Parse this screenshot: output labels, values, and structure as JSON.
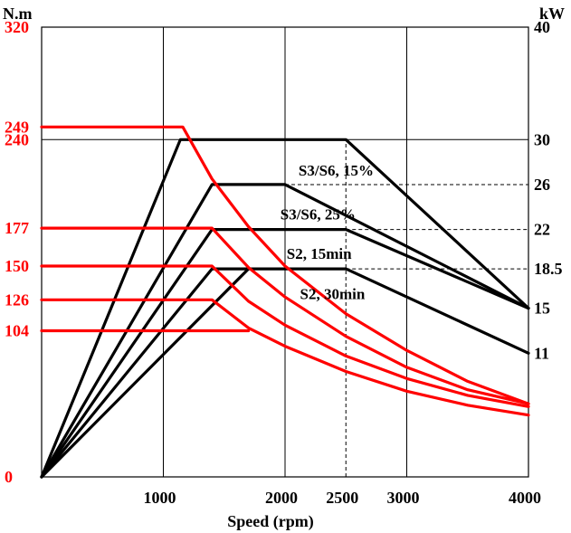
{
  "chart_data": {
    "type": "line",
    "title": "",
    "xlabel": "Speed (rpm)",
    "ylabel_left": "N.m",
    "ylabel_right": "kW",
    "xlim": [
      0,
      4000
    ],
    "ylim_left": [
      0,
      320
    ],
    "ylim_right": [
      0,
      40
    ],
    "grid": true,
    "x_ticks": [
      {
        "value": 1000,
        "label": "1000"
      },
      {
        "value": 2000,
        "label": "2000"
      },
      {
        "value": 2500,
        "label": "2500"
      },
      {
        "value": 3000,
        "label": "3000"
      },
      {
        "value": 4000,
        "label": "4000"
      }
    ],
    "left_ticks": [
      {
        "value": 320,
        "label": "320"
      },
      {
        "value": 249,
        "label": "249"
      },
      {
        "value": 240,
        "label": "240"
      },
      {
        "value": 177,
        "label": "177"
      },
      {
        "value": 150,
        "label": "150"
      },
      {
        "value": 126,
        "label": "126"
      },
      {
        "value": 104,
        "label": "104"
      },
      {
        "value": 0,
        "label": "0"
      }
    ],
    "right_ticks": [
      {
        "value": 40,
        "label": "40"
      },
      {
        "value": 30,
        "label": "30"
      },
      {
        "value": 26,
        "label": "26"
      },
      {
        "value": 22,
        "label": "22"
      },
      {
        "value": 18.5,
        "label": "18.5"
      },
      {
        "value": 15,
        "label": "15"
      },
      {
        "value": 11,
        "label": "11"
      }
    ],
    "series_labels": [
      {
        "text": "S3/S6, 15%",
        "x": 2420,
        "y": 26.8
      },
      {
        "text": "S3/S6, 25%",
        "x": 2270,
        "y": 22.9
      },
      {
        "text": "S2, 15min",
        "x": 2280,
        "y": 19.4
      },
      {
        "text": "S2, 30min",
        "x": 2390,
        "y": 15.8
      }
    ],
    "power_series": [
      {
        "name": "S3/S6, 15%",
        "color": "#000000",
        "points": [
          [
            0,
            0
          ],
          [
            1140,
            30
          ],
          [
            2500,
            30
          ],
          [
            4000,
            15
          ]
        ]
      },
      {
        "name": "S3/S6, 25%",
        "color": "#000000",
        "points": [
          [
            0,
            0
          ],
          [
            1400,
            26
          ],
          [
            2000,
            26
          ],
          [
            4000,
            15
          ]
        ]
      },
      {
        "name": "S2, 15min",
        "color": "#000000",
        "points": [
          [
            0,
            0
          ],
          [
            1400,
            22
          ],
          [
            2500,
            22
          ],
          [
            4000,
            15
          ]
        ]
      },
      {
        "name": "S2, 30min",
        "color": "#000000",
        "points": [
          [
            0,
            0
          ],
          [
            1400,
            18.5
          ],
          [
            2500,
            18.5
          ],
          [
            4000,
            11
          ]
        ]
      },
      {
        "name": "",
        "color": "#000000",
        "points": [
          [
            0,
            0
          ],
          [
            1700,
            18.5
          ]
        ]
      }
    ],
    "torque_series": [
      {
        "name": "S3/S6, 15%",
        "color": "#ff0000",
        "points": [
          [
            0,
            249
          ],
          [
            1160,
            249
          ],
          [
            1400,
            212
          ],
          [
            1700,
            178
          ],
          [
            2000,
            150
          ],
          [
            2500,
            116
          ],
          [
            3000,
            90
          ],
          [
            3500,
            68
          ],
          [
            4000,
            52
          ]
        ]
      },
      {
        "name": "S3/S6, 25%",
        "color": "#ff0000",
        "points": [
          [
            0,
            177
          ],
          [
            1400,
            177
          ],
          [
            1700,
            149
          ],
          [
            2000,
            128
          ],
          [
            2500,
            100
          ],
          [
            3000,
            78
          ],
          [
            3500,
            62
          ],
          [
            4000,
            52
          ]
        ]
      },
      {
        "name": "S2, 15min",
        "color": "#ff0000",
        "points": [
          [
            0,
            150
          ],
          [
            1400,
            150
          ],
          [
            1700,
            125
          ],
          [
            2000,
            108
          ],
          [
            2500,
            86
          ],
          [
            3000,
            70
          ],
          [
            3500,
            58
          ],
          [
            4000,
            50
          ]
        ]
      },
      {
        "name": "S2, 30min",
        "color": "#ff0000",
        "points": [
          [
            0,
            126
          ],
          [
            1400,
            126
          ],
          [
            1700,
            106
          ],
          [
            2000,
            93
          ],
          [
            2500,
            75
          ],
          [
            3000,
            61
          ],
          [
            3500,
            51
          ],
          [
            4000,
            44
          ]
        ]
      },
      {
        "name": "",
        "color": "#ff0000",
        "points": [
          [
            0,
            104
          ],
          [
            1700,
            104
          ]
        ]
      }
    ],
    "dashed_guides": [
      {
        "from": [
          2000,
          26
        ],
        "to": [
          4000,
          26
        ]
      },
      {
        "from": [
          2500,
          22
        ],
        "to": [
          4000,
          22
        ]
      },
      {
        "from": [
          2500,
          18.5
        ],
        "to": [
          4000,
          18.5
        ]
      },
      {
        "from": [
          2500,
          0
        ],
        "to": [
          2500,
          30
        ]
      }
    ],
    "colors": {
      "torque": "#ff0000",
      "power": "#000000",
      "grid": "#000000"
    }
  }
}
